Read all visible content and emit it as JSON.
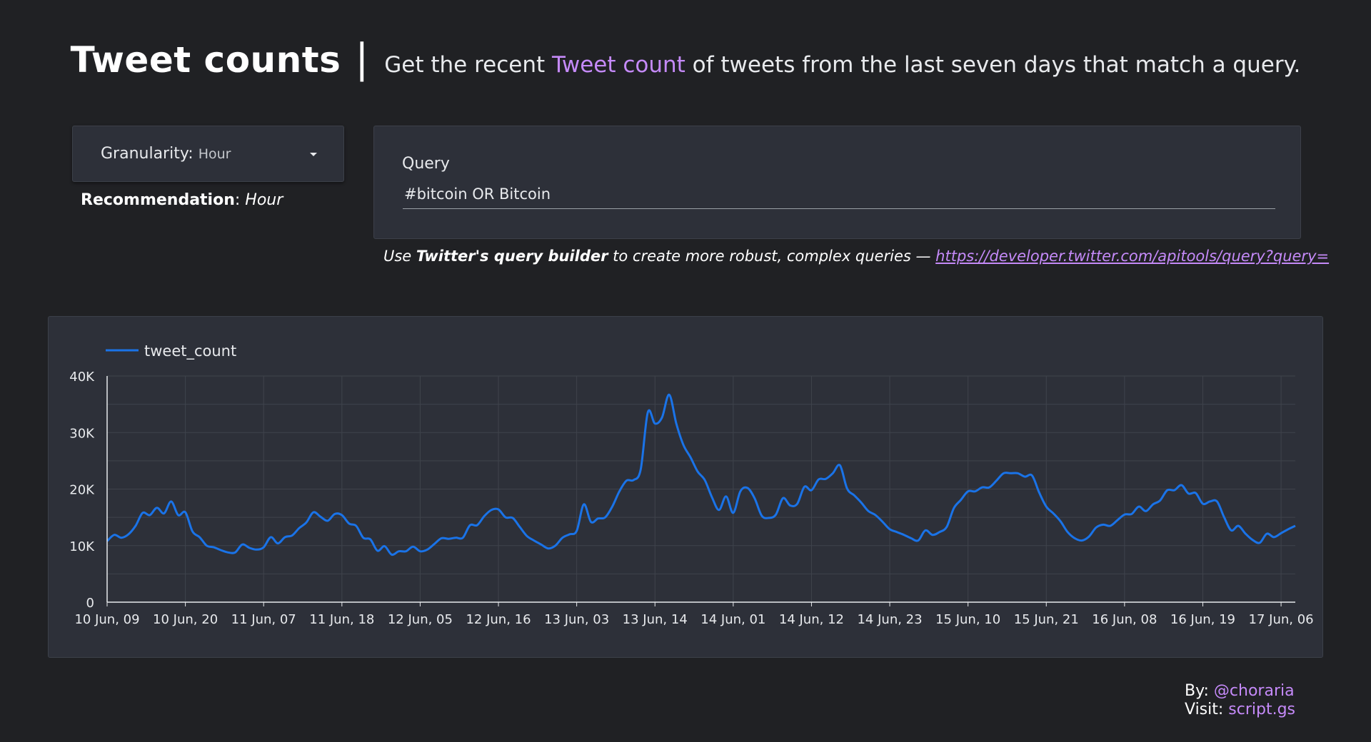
{
  "header": {
    "title": "Tweet counts",
    "separator": "|",
    "subtitle_before": "Get the recent ",
    "subtitle_link": "Tweet count",
    "subtitle_after": " of tweets from the last seven days that match a query."
  },
  "granularity": {
    "label": "Granularity",
    "colon": ":",
    "value": "Hour",
    "icon": "caret-down-icon"
  },
  "recommendation": {
    "label": "Recommendation",
    "colon": ": ",
    "value": "Hour"
  },
  "query": {
    "label": "Query",
    "value": "#bitcoin OR Bitcoin"
  },
  "hint": {
    "prefix": "Use ",
    "bold": "Twitter's query builder",
    "middle": " to create more robust, complex queries — ",
    "link": "https://developer.twitter.com/apitools/query?query="
  },
  "footer": {
    "by_label": "By: ",
    "by_value": "@choraria",
    "visit_label": "Visit: ",
    "visit_value": "script.gs"
  },
  "colors": {
    "background": "#202124",
    "panel": "#2d3039",
    "accent": "#c58af9",
    "series": "#1a73e8",
    "grid": "#3f434c"
  },
  "chart_data": {
    "type": "line",
    "legend": "top-left",
    "grid": true,
    "series": [
      {
        "name": "tweet_count",
        "color": "#1a73e8",
        "values": [
          10800,
          11900,
          11400,
          12000,
          13500,
          15800,
          15400,
          16700,
          15700,
          17800,
          15400,
          15900,
          12500,
          11500,
          10000,
          9700,
          9200,
          8800,
          8800,
          10200,
          9600,
          9300,
          9700,
          11500,
          10400,
          11500,
          11800,
          13100,
          14100,
          15900,
          15100,
          14400,
          15600,
          15400,
          13900,
          13500,
          11400,
          11100,
          9100,
          9900,
          8400,
          9000,
          9000,
          9800,
          9000,
          9300,
          10300,
          11300,
          11200,
          11400,
          11400,
          13600,
          13600,
          15200,
          16300,
          16400,
          15000,
          14900,
          13300,
          11700,
          10900,
          10200,
          9500,
          10000,
          11400,
          12000,
          12600,
          17300,
          14200,
          14800,
          15000,
          16900,
          19600,
          21500,
          21600,
          23500,
          33600,
          31600,
          32700,
          36700,
          31600,
          27800,
          25600,
          23100,
          21600,
          18600,
          16300,
          18700,
          15800,
          19600,
          20200,
          18400,
          15300,
          14900,
          15500,
          18400,
          17100,
          17400,
          20400,
          19800,
          21700,
          21800,
          22800,
          24200,
          20100,
          18900,
          17600,
          16100,
          15400,
          14200,
          12900,
          12400,
          11900,
          11300,
          10900,
          12700,
          11900,
          12400,
          13300,
          16600,
          18100,
          19600,
          19600,
          20300,
          20300,
          21500,
          22800,
          22800,
          22800,
          22200,
          22400,
          19400,
          16900,
          15700,
          14300,
          12400,
          11300,
          10900,
          11600,
          13200,
          13700,
          13500,
          14500,
          15500,
          15600,
          16900,
          16100,
          17300,
          18000,
          19800,
          19800,
          20700,
          19200,
          19300,
          17400,
          17800,
          17800,
          15000,
          12700,
          13500,
          12100,
          11000,
          10500,
          12100,
          11500,
          12200,
          12900,
          13500
        ]
      }
    ],
    "x_labels": [
      "10 Jun, 09",
      "10 Jun, 20",
      "11 Jun, 07",
      "11 Jun, 18",
      "12 Jun, 05",
      "12 Jun, 16",
      "13 Jun, 03",
      "13 Jun, 14",
      "14 Jun, 01",
      "14 Jun, 12",
      "14 Jun, 23",
      "15 Jun, 10",
      "15 Jun, 21",
      "16 Jun, 08",
      "16 Jun, 19",
      "17 Jun, 06"
    ],
    "label_step": 11,
    "y_ticks": [
      0,
      10000,
      20000,
      30000,
      40000
    ],
    "y_tick_labels": [
      "0",
      "10K",
      "20K",
      "30K",
      "40K"
    ],
    "ylim": [
      0,
      40000
    ]
  }
}
